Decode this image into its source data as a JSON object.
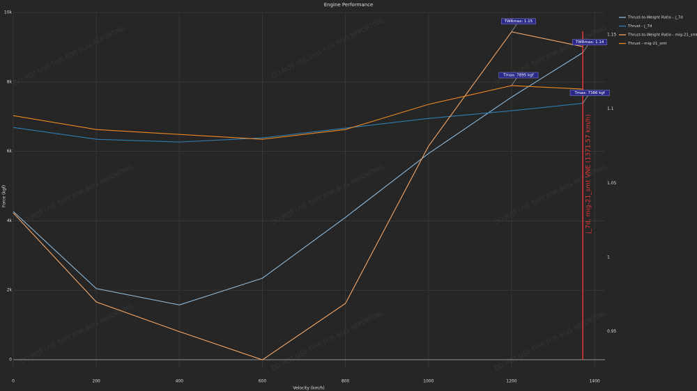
{
  "chart_data": {
    "type": "line",
    "title": "Engine Performance",
    "x_label": "Velocity (km/h)",
    "y_label": "Force (kgf)",
    "x": [
      0,
      200,
      400,
      600,
      800,
      1000,
      1200,
      1371.57
    ],
    "xlim": [
      0,
      1425
    ],
    "xticks": [
      0,
      200,
      400,
      600,
      800,
      1000,
      1200,
      1400
    ],
    "ylim": [
      -260,
      10000
    ],
    "yticks": [
      0,
      {
        "value": 2000,
        "label": "2k"
      },
      {
        "value": 4000,
        "label": "4k"
      },
      {
        "value": 6000,
        "label": "6k"
      },
      {
        "value": 8000,
        "label": "8k"
      },
      {
        "value": 10000,
        "label": "10k"
      }
    ],
    "y2lim": [
      0.925,
      1.165
    ],
    "y2ticks": [
      0.95,
      1,
      1.05,
      1.1,
      1.15
    ],
    "grid": true,
    "legend": "top-right",
    "series": [
      {
        "name": "Thrust-to-Weight Ratio - j_7d",
        "color": "#8fb8d8",
        "axis": "y2",
        "values": [
          1.031,
          0.979,
          0.968,
          0.986,
          1.027,
          1.07,
          1.108,
          1.138
        ]
      },
      {
        "name": "Thrust - j_7d",
        "color": "#2f7fb5",
        "values": [
          6690,
          6350,
          6270,
          6390,
          6670,
          6950,
          7170,
          7386
        ]
      },
      {
        "name": "Thrust-to-Weight Ratio - mig-21_smt",
        "color": "#f5a86a",
        "axis": "y2",
        "values": [
          1.03,
          0.97,
          0.95,
          0.931,
          0.969,
          1.075,
          1.152,
          1.142
        ]
      },
      {
        "name": "Thrust - mig-21_smt",
        "color": "#f08a24",
        "values": [
          7030,
          6630,
          6490,
          6350,
          6630,
          7355,
          7895,
          7795
        ]
      }
    ],
    "annotations": [
      {
        "text": "TWRmax: 1.15",
        "series": 2,
        "point": 6
      },
      {
        "text": "TWRmax: 1.14",
        "series": 0,
        "point": 7
      },
      {
        "text": "Tmax: 7895 kgf",
        "series": 3,
        "point": 6
      },
      {
        "text": "Tmax: 7386 kgf",
        "series": 1,
        "point": 7
      }
    ],
    "vline": {
      "x": 1371.57,
      "label": "j_7d, mig-21_smt VNE (1371.57 km/h)",
      "color": "#e53935"
    },
    "watermark": "DO NOT USE THIS FOR BUG REPORTING"
  }
}
